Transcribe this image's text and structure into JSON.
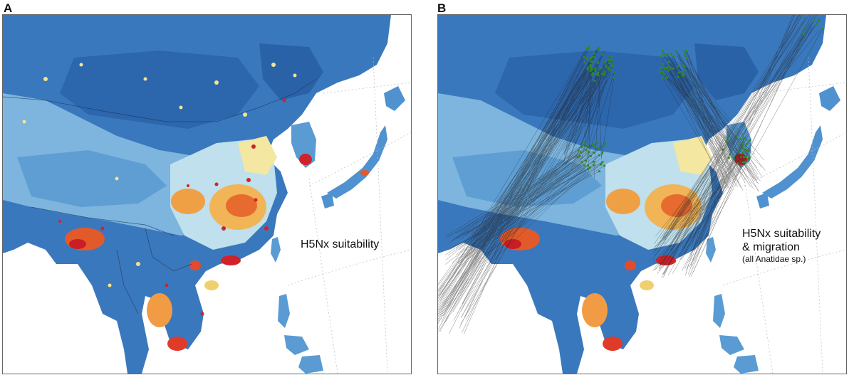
{
  "panels": [
    {
      "label": "A",
      "caption": "H5Nx suitability"
    },
    {
      "label": "B",
      "caption_line1": "H5Nx suitability",
      "caption_line2": "& migration",
      "caption_line3": "(all Anatidae sp.)"
    }
  ],
  "colors": {
    "background_water": "#ffffff",
    "low": "#2f6fb7",
    "low_mid": "#5a9bd3",
    "mid": "#a9d4e8",
    "mid_high": "#f7f0b0",
    "high": "#f4a23c",
    "very_high": "#d0222a",
    "migration_lines": "#222222",
    "stopover_points": "#2e8b22",
    "graticule": "#bbbbbb"
  }
}
